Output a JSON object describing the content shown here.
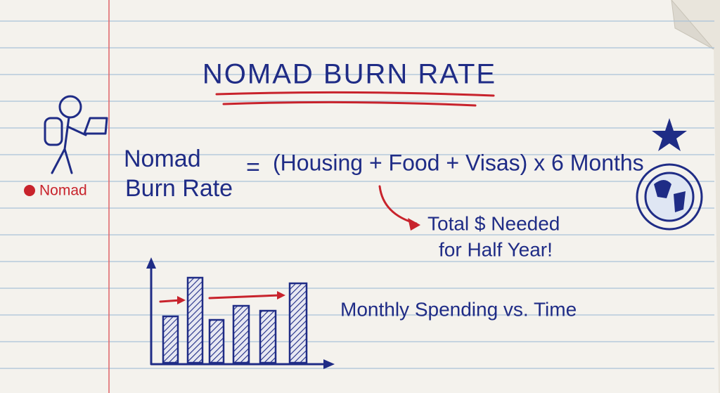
{
  "title": "NOMAD BURN RATE",
  "figure": {
    "label": "Nomad"
  },
  "formula": {
    "lhs": [
      "Nomad",
      "Burn Rate"
    ],
    "equals": "=",
    "rhs": "(Housing + Food + Visas) x 6 Months"
  },
  "note": [
    "Total $ Needed",
    "for Half Year!"
  ],
  "sketch": {
    "caption": "Monthly Spending vs. Time"
  }
}
